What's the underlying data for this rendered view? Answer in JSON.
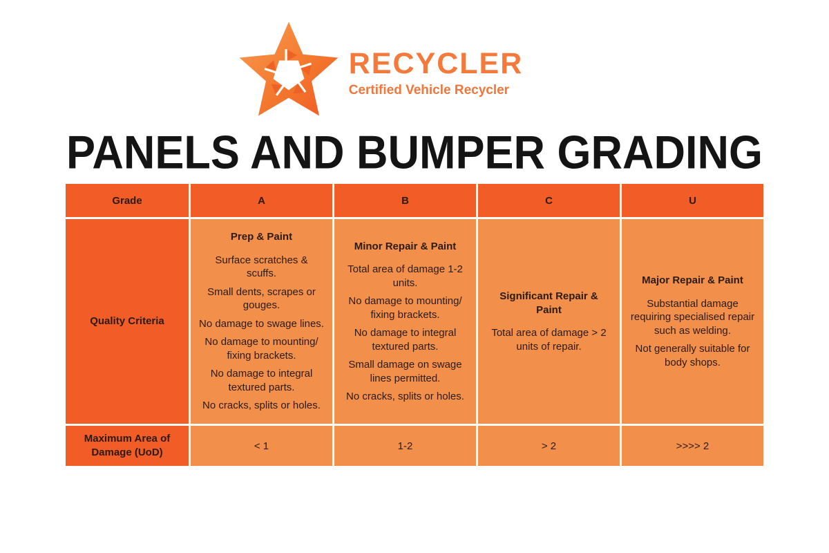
{
  "logo": {
    "brand": "RECYCLER",
    "tagline": "Certified Vehicle Recycler",
    "star_icon": "recycling-arrows-star",
    "colors": {
      "brand_text": "#F4793B",
      "star_light": "#F89B52",
      "star_dark": "#EF5A23"
    }
  },
  "title": "PANELS AND BUMPER GRADING",
  "table": {
    "colors": {
      "header_bg": "#F15C27",
      "cell_bg": "#F28F4A",
      "text": "#2B1B10"
    },
    "row_headers": {
      "grade": "Grade",
      "quality_criteria": "Quality Criteria",
      "max_area": "Maximum Area of Damage (UoD)"
    },
    "grades": [
      {
        "label": "A",
        "criteria_title": "Prep & Paint",
        "criteria": [
          "Surface scratches & scuffs.",
          "Small dents, scrapes or gouges.",
          "No damage to swage lines.",
          "No damage to mounting/ fixing brackets.",
          "No damage to integral textured parts.",
          "No cracks, splits or holes."
        ],
        "max_area": "< 1"
      },
      {
        "label": "B",
        "criteria_title": "Minor Repair & Paint",
        "criteria": [
          "Total area of damage 1-2 units.",
          "No damage to mounting/ fixing brackets.",
          "No damage to integral textured parts.",
          "Small damage on swage lines permitted.",
          "No cracks, splits or holes."
        ],
        "max_area": "1-2"
      },
      {
        "label": "C",
        "criteria_title": "Significant Repair & Paint",
        "criteria": [
          "Total area of damage > 2 units of repair."
        ],
        "max_area": "> 2"
      },
      {
        "label": "U",
        "criteria_title": "Major Repair & Paint",
        "criteria": [
          "Substantial damage requiring specialised repair such as welding.",
          "Not generally suitable for body shops."
        ],
        "max_area": ">>>> 2"
      }
    ]
  }
}
